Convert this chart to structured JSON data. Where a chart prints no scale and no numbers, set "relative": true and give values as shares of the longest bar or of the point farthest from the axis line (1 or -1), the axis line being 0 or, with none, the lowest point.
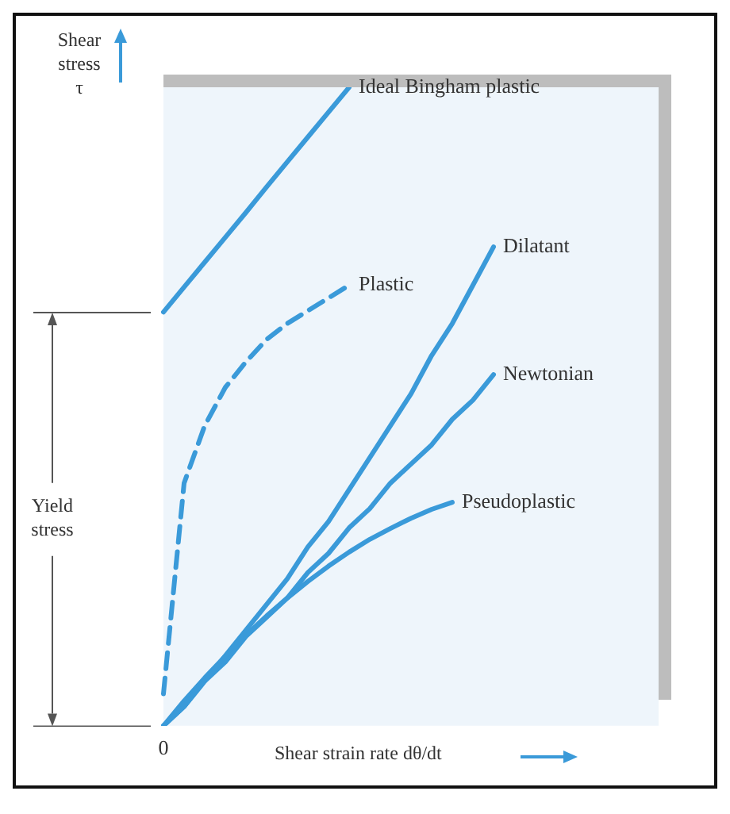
{
  "chart_data": {
    "type": "line",
    "relative": true,
    "xlabel": "Shear strain rate dθ/dt",
    "ylabel": "Shear stress τ",
    "annotations": [
      "0",
      "Yield stress"
    ],
    "categories": [
      null,
      null,
      null,
      null,
      null,
      null,
      null,
      null,
      null,
      null,
      null,
      null,
      null,
      null,
      null,
      null,
      null,
      null,
      null,
      null,
      null,
      null,
      null,
      null,
      null
    ],
    "series": [
      {
        "name": "Ideal Bingham plastic",
        "color": "#3a9ad9",
        "values": [
          0.648,
          0.687,
          0.726,
          0.765,
          0.804,
          0.844,
          0.883,
          0.922,
          0.961,
          1,
          null,
          null,
          null,
          null,
          null,
          null,
          null,
          null,
          null,
          null,
          null,
          null,
          null,
          null,
          null
        ]
      },
      {
        "name": "Plastic",
        "color": "#3a9ad9",
        "line_style": "dashed",
        "values": [
          0.05,
          0.38,
          0.47,
          0.53,
          0.57,
          0.605,
          0.63,
          0.65,
          0.67,
          0.69,
          null,
          null,
          null,
          null,
          null,
          null,
          null,
          null,
          null,
          null,
          null,
          null,
          null,
          null,
          null
        ]
      },
      {
        "name": "Dilatant",
        "color": "#3a9ad9",
        "values": [
          0,
          0.03,
          0.07,
          0.11,
          0.15,
          0.19,
          0.23,
          0.28,
          0.32,
          0.37,
          0.42,
          0.47,
          0.52,
          0.58,
          0.63,
          0.69,
          0.75,
          null,
          null,
          null,
          null,
          null,
          null,
          null,
          null
        ]
      },
      {
        "name": "Newtonian",
        "color": "#3a9ad9",
        "values": [
          0,
          0.03,
          0.07,
          0.1,
          0.14,
          0.17,
          0.2,
          0.24,
          0.27,
          0.31,
          0.34,
          0.38,
          0.41,
          0.44,
          0.48,
          0.51,
          0.55,
          null,
          null,
          null,
          null,
          null,
          null,
          null,
          null
        ]
      },
      {
        "name": "Pseudoplastic",
        "color": "#3a9ad9",
        "values": [
          0,
          0.039,
          0.075,
          0.109,
          0.142,
          0.172,
          0.2,
          0.226,
          0.25,
          0.272,
          0.292,
          0.309,
          0.325,
          0.339,
          0.35,
          null,
          null,
          null,
          null,
          null,
          null,
          null,
          null,
          null,
          null
        ]
      }
    ]
  }
}
